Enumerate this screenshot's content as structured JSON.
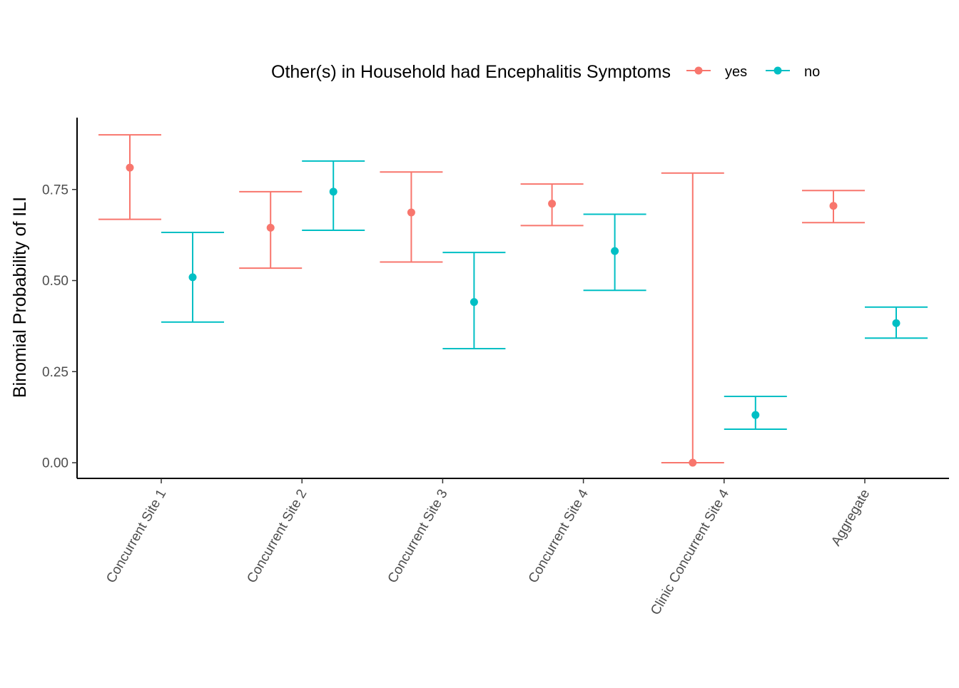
{
  "chart_data": {
    "type": "scatter",
    "subtype": "point-with-errorbars",
    "title": "",
    "xlabel": "",
    "ylabel": "Binomial Probability of ILI",
    "ylim": [
      -0.04,
      0.95
    ],
    "yticks": [
      "0.00",
      "0.25",
      "0.50",
      "0.75"
    ],
    "ytick_values": [
      0.0,
      0.25,
      0.5,
      0.75
    ],
    "categories": [
      "Concurrent Site 1",
      "Concurrent Site 2",
      "Concurrent Site 3",
      "Concurrent Site 4",
      "Clinic Concurrent Site 4",
      "Aggregate"
    ],
    "grid": false,
    "legend": {
      "title": "Other(s) in Household had Encephalitis Symptoms",
      "placement": "top"
    },
    "series": [
      {
        "name": "yes",
        "color": "#F8766D",
        "values": [
          0.81,
          0.645,
          0.687,
          0.711,
          0.0,
          0.705
        ],
        "lower": [
          0.668,
          0.534,
          0.551,
          0.651,
          0.0,
          0.659
        ],
        "upper": [
          0.9,
          0.744,
          0.798,
          0.765,
          0.795,
          0.747
        ]
      },
      {
        "name": "no",
        "color": "#00BFC4",
        "values": [
          0.509,
          0.744,
          0.441,
          0.581,
          0.131,
          0.383
        ],
        "lower": [
          0.386,
          0.638,
          0.313,
          0.473,
          0.092,
          0.342
        ],
        "upper": [
          0.632,
          0.828,
          0.577,
          0.682,
          0.182,
          0.427
        ]
      }
    ]
  }
}
